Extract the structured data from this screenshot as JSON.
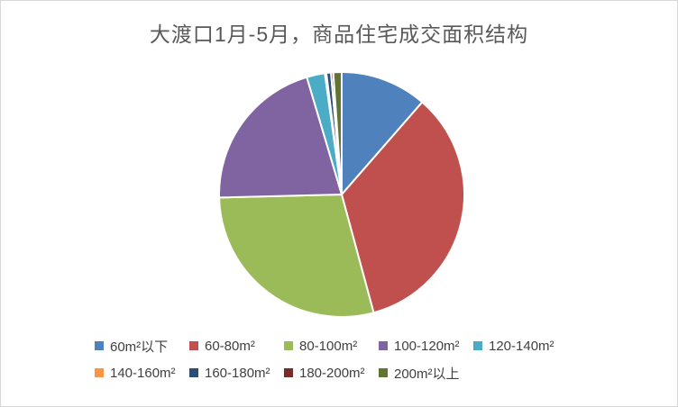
{
  "window": {
    "background": "#FFFFFF",
    "border_color": "#D7D7D7"
  },
  "chart_data": {
    "type": "pie",
    "title": "大渡口1月-5月，商品住宅成交面积结构",
    "title_color": "#595959",
    "categories": [
      "60m²以下",
      "60-80m²",
      "80-100m²",
      "100-120m²",
      "120-140m²",
      "140-160m²",
      "160-180m²",
      "180-200m²",
      "200m²以上"
    ],
    "values": [
      11.4,
      34.4,
      28.8,
      20.8,
      2.4,
      0.2,
      0.6,
      0.3,
      1.1
    ],
    "values_unit": "share_percent_estimated_from_angles",
    "colors": [
      "#4F81BD",
      "#C0504D",
      "#9BBB59",
      "#8064A2",
      "#4BACC6",
      "#F79646",
      "#2C4D75",
      "#772C2A",
      "#5F7530"
    ],
    "slice_border_color": "#FFFFFF",
    "start_angle_deg": 0,
    "direction": "clockwise",
    "legend_position": "bottom",
    "legend_text_color": "#404040",
    "legend_rows": [
      [
        0,
        1,
        2,
        3,
        4
      ],
      [
        5,
        6,
        7,
        8
      ]
    ]
  }
}
